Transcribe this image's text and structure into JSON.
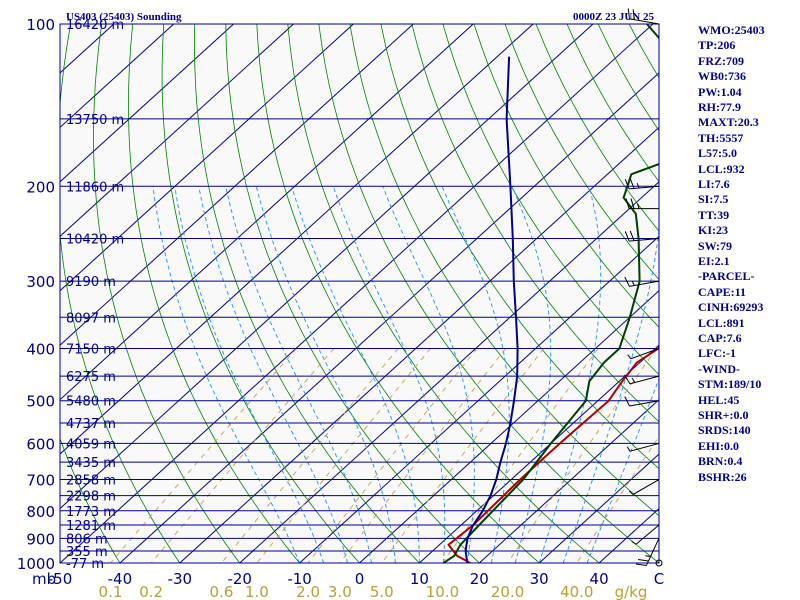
{
  "header": {
    "station_title": "US403 (25403) Sounding",
    "valid_time": "0000Z 23 JUN 25"
  },
  "chart_data": {
    "type": "line",
    "title": "US403 (25403) Sounding",
    "subtitle": "0000Z 23 JUN 25",
    "xlabel": "",
    "ylabel": "",
    "pressure_ticks": [
      100,
      200,
      300,
      400,
      500,
      600,
      700,
      800,
      900,
      1000
    ],
    "pressure_unit": "mb",
    "temperature_ticks": [
      -50,
      -40,
      -30,
      -20,
      -10,
      0,
      10,
      20,
      30,
      40,
      50
    ],
    "temperature_tick_labels": [
      "-50",
      "-40",
      "-30",
      "-20",
      "-10",
      "0",
      "10",
      "20",
      "30",
      "40",
      "C"
    ],
    "mixing_ratio_labels": [
      "0.1",
      "0.2",
      "0.6",
      "1.0",
      "2.0",
      "3.0",
      "5.0",
      "10.0",
      "20.0",
      "40.0"
    ],
    "mixing_ratio_unit": "g/kg",
    "xlim": [
      -50,
      50
    ],
    "ylim": [
      1000,
      100
    ],
    "log_pressure": true,
    "height_labels": [
      {
        "p": 100,
        "label": "16420 m"
      },
      {
        "p": 150,
        "label": "13750 m"
      },
      {
        "p": 200,
        "label": "11860 m"
      },
      {
        "p": 250,
        "label": "10420 m"
      },
      {
        "p": 300,
        "label": "9190 m"
      },
      {
        "p": 350,
        "label": "8097 m"
      },
      {
        "p": 400,
        "label": "7150 m"
      },
      {
        "p": 450,
        "label": "6275 m"
      },
      {
        "p": 500,
        "label": "5480 m"
      },
      {
        "p": 550,
        "label": "4737 m"
      },
      {
        "p": 600,
        "label": "4059 m"
      },
      {
        "p": 650,
        "label": "3435 m"
      },
      {
        "p": 700,
        "label": "2858 m"
      },
      {
        "p": 750,
        "label": "2298 m"
      },
      {
        "p": 800,
        "label": "1773 m"
      },
      {
        "p": 850,
        "label": "1281 m"
      },
      {
        "p": 900,
        "label": "806 m"
      },
      {
        "p": 950,
        "label": "355 m"
      },
      {
        "p": 1000,
        "label": "-77 m"
      }
    ],
    "series": [
      {
        "role": "temperature",
        "color": "#b00000",
        "points": [
          [
            1000,
            18.5
          ],
          [
            970,
            15
          ],
          [
            925,
            11.5
          ],
          [
            850,
            12
          ],
          [
            700,
            11.5
          ],
          [
            600,
            11.5
          ],
          [
            500,
            11.8
          ],
          [
            460,
            10.5
          ],
          [
            425,
            9.5
          ],
          [
            400,
            10.5
          ],
          [
            350,
            7
          ],
          [
            300,
            3.5
          ],
          [
            250,
            -4
          ],
          [
            225,
            -9
          ],
          [
            210,
            -11.5
          ],
          [
            195,
            -14.5
          ],
          [
            170,
            -12
          ],
          [
            160,
            -17
          ],
          [
            140,
            -23
          ],
          [
            120,
            -31
          ],
          [
            100,
            -43
          ]
        ]
      },
      {
        "role": "dewpoint",
        "color": "#004000",
        "points": [
          [
            1000,
            14
          ],
          [
            970,
            14.5
          ],
          [
            925,
            13.5
          ],
          [
            850,
            13
          ],
          [
            700,
            12
          ],
          [
            600,
            10
          ],
          [
            500,
            8
          ],
          [
            460,
            5
          ],
          [
            425,
            4
          ],
          [
            400,
            4
          ],
          [
            350,
            0
          ],
          [
            300,
            -5
          ],
          [
            250,
            -13
          ],
          [
            225,
            -18
          ],
          [
            210,
            -23
          ],
          [
            190,
            -26
          ],
          [
            170,
            -19
          ],
          [
            150,
            -27
          ],
          [
            120,
            -37
          ],
          [
            100,
            -51
          ]
        ]
      },
      {
        "role": "parcel",
        "color": "#00008b",
        "points": [
          [
            1000,
            18
          ],
          [
            950,
            15.5
          ],
          [
            900,
            13.5
          ],
          [
            850,
            12
          ],
          [
            800,
            11
          ],
          [
            750,
            9.5
          ],
          [
            700,
            7.5
          ],
          [
            650,
            5
          ],
          [
            600,
            2.5
          ],
          [
            550,
            -0.5
          ],
          [
            500,
            -4
          ],
          [
            450,
            -8
          ],
          [
            400,
            -13
          ],
          [
            350,
            -19
          ],
          [
            300,
            -26
          ],
          [
            250,
            -34
          ],
          [
            200,
            -44
          ],
          [
            150,
            -57
          ],
          [
            115,
            -68
          ]
        ]
      }
    ],
    "grids": {
      "isotherm_color": "#00008b",
      "dry_adiabat_color": "#008000",
      "moist_adiabat_color": "#1e8fff",
      "mixing_ratio_color": "#c4a24a"
    },
    "wind_barbs": [
      {
        "p": 100,
        "dir": 280,
        "speed": 20
      },
      {
        "p": 200,
        "dir": 265,
        "speed": 25
      },
      {
        "p": 220,
        "dir": 270,
        "speed": 25
      },
      {
        "p": 250,
        "dir": 265,
        "speed": 20
      },
      {
        "p": 300,
        "dir": 260,
        "speed": 15
      },
      {
        "p": 400,
        "dir": 250,
        "speed": 5
      },
      {
        "p": 450,
        "dir": 255,
        "speed": 15
      },
      {
        "p": 500,
        "dir": 260,
        "speed": 10
      },
      {
        "p": 600,
        "dir": 255,
        "speed": 5
      },
      {
        "p": 700,
        "dir": 240,
        "speed": 5
      },
      {
        "p": 850,
        "dir": 230,
        "speed": 5
      },
      {
        "p": 900,
        "dir": 205,
        "speed": 25
      },
      {
        "p": 1000,
        "dir": 0,
        "speed": 0
      }
    ]
  },
  "indices": [
    "WMO:25403",
    "TP:206",
    "FRZ:709",
    "WB0:736",
    "PW:1.04",
    "RH:77.9",
    "MAXT:20.3",
    "TH:5557",
    "L57:5.0",
    "LCL:932",
    "LI:7.6",
    "SI:7.5",
    "TT:39",
    "KI:23",
    "SW:79",
    "EI:2.1",
    "-PARCEL-",
    "CAPE:11",
    "CINH:69293",
    "LCL:891",
    "CAP:7.6",
    "LFC:-1",
    "-WIND-",
    "STM:189/10",
    "HEL:45",
    "SHR+:0.0",
    "SRDS:140",
    "EHI:0.0",
    "BRN:0.4",
    "BSHR:26"
  ]
}
